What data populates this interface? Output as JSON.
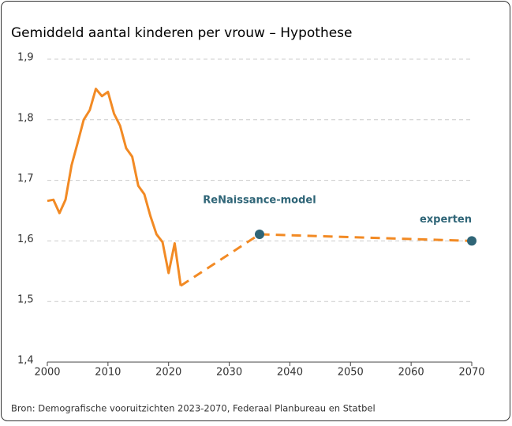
{
  "chart_data": {
    "type": "line",
    "title": "Gemiddeld aantal kinderen per vrouw – Hypothese",
    "source": "Bron: Demografische vooruitzichten 2023-2070, Federaal Planbureau en Statbel",
    "series": [
      {
        "color": "#f28a24",
        "dashed": false,
        "x": [
          2000,
          2001,
          2002,
          2003,
          2004,
          2005,
          2006,
          2007,
          2008,
          2009,
          2010,
          2011,
          2012,
          2013,
          2014,
          2015,
          2016,
          2017,
          2018,
          2019,
          2020,
          2021,
          2022
        ],
        "values": [
          1.666,
          1.668,
          1.646,
          1.668,
          1.725,
          1.762,
          1.8,
          1.816,
          1.851,
          1.839,
          1.846,
          1.81,
          1.79,
          1.753,
          1.739,
          1.691,
          1.677,
          1.641,
          1.611,
          1.598,
          1.547,
          1.596,
          1.526
        ]
      },
      {
        "color": "#f28a24",
        "dashed": true,
        "x": [
          2022,
          2035,
          2070
        ],
        "values": [
          1.526,
          1.611,
          1.6
        ]
      }
    ],
    "markers": {
      "color": "#2f6577",
      "x": [
        2035,
        2070
      ],
      "values": [
        1.611,
        1.6
      ],
      "labels": [
        "ReNaissance-model",
        "experten"
      ]
    },
    "xlim": [
      2000,
      2070
    ],
    "xticks": [
      2000,
      2010,
      2020,
      2030,
      2040,
      2050,
      2060,
      2070
    ],
    "ylim": [
      1.4,
      1.9
    ],
    "yticks": [
      {
        "value": 1.4,
        "label": "1,4"
      },
      {
        "value": 1.5,
        "label": "1,5"
      },
      {
        "value": 1.6,
        "label": "1,6"
      },
      {
        "value": 1.7,
        "label": "1,7"
      },
      {
        "value": 1.8,
        "label": "1,8"
      },
      {
        "value": 1.9,
        "label": "1,9"
      }
    ],
    "grid": true
  }
}
